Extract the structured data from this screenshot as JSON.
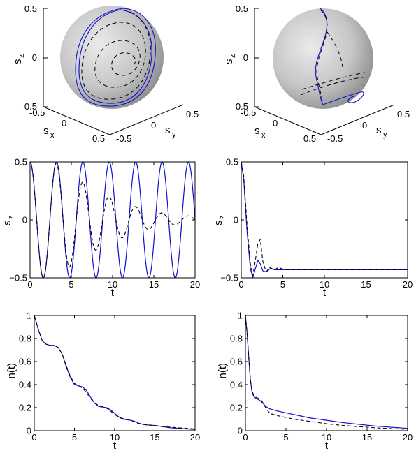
{
  "figure": {
    "colors": {
      "solid": "#1010d0",
      "dashed": "#000000",
      "sphere_light": "#e4e4e4",
      "sphere_dark": "#8c8c8c",
      "axis": "#000000"
    }
  },
  "chart_data": [
    {
      "type": "line",
      "panel": "3d-sphere-left",
      "zlabel": "s",
      "zlabel_sub": "z",
      "xlabel": "s",
      "xlabel_sub": "x",
      "ylabel": "s",
      "ylabel_sub": "y",
      "z_ticks": [
        "0.5",
        "0",
        "-0.5"
      ],
      "x_ticks": [
        "-0.5",
        "0",
        "0.5"
      ],
      "y_ticks": [
        "0.5",
        "0",
        "-0.5"
      ],
      "series": [
        {
          "style": "solid",
          "description_points": "closed loop trajectory on sphere"
        },
        {
          "style": "dashed",
          "description_points": "spiral trajectory on sphere"
        }
      ]
    },
    {
      "type": "line",
      "panel": "3d-sphere-right",
      "zlabel": "s",
      "zlabel_sub": "z",
      "xlabel": "s",
      "xlabel_sub": "x",
      "ylabel": "s",
      "ylabel_sub": "y",
      "z_ticks": [
        "0.5",
        "0",
        "-0.5"
      ],
      "x_ticks": [
        "-0.5",
        "0",
        "0.5"
      ],
      "y_ticks": [
        "0.5",
        "0",
        "-0.5"
      ],
      "series": [
        {
          "style": "solid"
        },
        {
          "style": "dashed"
        }
      ]
    },
    {
      "type": "line",
      "panel": "sz-left",
      "xlabel": "t",
      "ylabel": "s",
      "ylabel_sub": "z",
      "xlim": [
        0,
        20
      ],
      "ylim": [
        -0.5,
        0.5
      ],
      "x_ticks": [
        0,
        5,
        10,
        15,
        20
      ],
      "y_ticks": [
        -0.5,
        0,
        0.5
      ],
      "y_tick_labels": [
        "−0.5",
        "0",
        "0.5"
      ],
      "series": [
        {
          "style": "solid",
          "model": "cos",
          "amplitude": 0.5,
          "period": 3.2
        },
        {
          "style": "dashed",
          "model": "damped-cos",
          "amplitude": 0.5,
          "period": 3.2,
          "envelope": [
            [
              0,
              0.5
            ],
            [
              3,
              0.5
            ],
            [
              6,
              0.34
            ],
            [
              9,
              0.22
            ],
            [
              12,
              0.13
            ],
            [
              15,
              0.07
            ],
            [
              18,
              0.04
            ],
            [
              20,
              0.03
            ]
          ]
        }
      ]
    },
    {
      "type": "line",
      "panel": "sz-right",
      "xlabel": "t",
      "ylabel": "s",
      "ylabel_sub": "z",
      "xlim": [
        0,
        20
      ],
      "ylim": [
        -0.5,
        0.5
      ],
      "x_ticks": [
        0,
        5,
        10,
        15,
        20
      ],
      "y_ticks": [
        -0.5,
        0,
        0.5
      ],
      "y_tick_labels": [
        "−0.5",
        "0",
        "0.5"
      ],
      "series": [
        {
          "style": "solid",
          "points": [
            [
              0,
              0.5
            ],
            [
              0.3,
              0.35
            ],
            [
              0.7,
              -0.1
            ],
            [
              1.1,
              -0.42
            ],
            [
              1.4,
              -0.5
            ],
            [
              1.7,
              -0.42
            ],
            [
              2.0,
              -0.35
            ],
            [
              2.3,
              -0.38
            ],
            [
              2.6,
              -0.44
            ],
            [
              3.0,
              -0.45
            ],
            [
              3.5,
              -0.42
            ],
            [
              4.0,
              -0.43
            ],
            [
              5,
              -0.43
            ],
            [
              10,
              -0.43
            ],
            [
              15,
              -0.43
            ],
            [
              20,
              -0.43
            ]
          ]
        },
        {
          "style": "dashed",
          "points": [
            [
              0,
              0.5
            ],
            [
              0.3,
              0.38
            ],
            [
              0.7,
              -0.05
            ],
            [
              1.1,
              -0.38
            ],
            [
              1.4,
              -0.48
            ],
            [
              1.7,
              -0.35
            ],
            [
              2.0,
              -0.2
            ],
            [
              2.3,
              -0.17
            ],
            [
              2.6,
              -0.36
            ],
            [
              3.0,
              -0.45
            ],
            [
              3.4,
              -0.41
            ],
            [
              4.0,
              -0.43
            ],
            [
              4.5,
              -0.41
            ],
            [
              5.2,
              -0.43
            ],
            [
              10,
              -0.43
            ],
            [
              15,
              -0.43
            ],
            [
              20,
              -0.43
            ]
          ]
        }
      ]
    },
    {
      "type": "line",
      "panel": "n-left",
      "xlabel": "t",
      "ylabel": "n(t)",
      "xlim": [
        0,
        20
      ],
      "ylim": [
        0,
        1
      ],
      "x_ticks": [
        0,
        5,
        10,
        15,
        20
      ],
      "y_ticks": [
        0,
        0.2,
        0.4,
        0.6,
        0.8,
        1
      ],
      "y_tick_labels": [
        "0",
        "0.2",
        "0.4",
        "0.6",
        "0.8",
        "1"
      ],
      "series": [
        {
          "style": "solid",
          "points": [
            [
              0,
              1
            ],
            [
              0.5,
              0.88
            ],
            [
              1,
              0.78
            ],
            [
              1.5,
              0.75
            ],
            [
              2,
              0.74
            ],
            [
              2.5,
              0.74
            ],
            [
              3,
              0.72
            ],
            [
              3.5,
              0.66
            ],
            [
              4,
              0.55
            ],
            [
              4.5,
              0.46
            ],
            [
              5,
              0.4
            ],
            [
              5.5,
              0.39
            ],
            [
              6,
              0.38
            ],
            [
              6.5,
              0.35
            ],
            [
              7,
              0.29
            ],
            [
              7.5,
              0.24
            ],
            [
              8,
              0.21
            ],
            [
              8.5,
              0.205
            ],
            [
              9,
              0.2
            ],
            [
              9.5,
              0.18
            ],
            [
              10,
              0.15
            ],
            [
              10.5,
              0.12
            ],
            [
              11,
              0.1
            ],
            [
              11.5,
              0.095
            ],
            [
              12,
              0.09
            ],
            [
              12.5,
              0.08
            ],
            [
              13,
              0.065
            ],
            [
              13.5,
              0.055
            ],
            [
              14,
              0.05
            ],
            [
              15,
              0.045
            ],
            [
              16,
              0.035
            ],
            [
              17,
              0.025
            ],
            [
              18,
              0.02
            ],
            [
              19,
              0.015
            ],
            [
              20,
              0.01
            ]
          ]
        },
        {
          "style": "dashed",
          "points": [
            [
              0,
              1
            ],
            [
              0.5,
              0.88
            ],
            [
              1,
              0.78
            ],
            [
              1.5,
              0.75
            ],
            [
              2,
              0.74
            ],
            [
              2.5,
              0.74
            ],
            [
              3,
              0.72
            ],
            [
              3.5,
              0.66
            ],
            [
              4,
              0.56
            ],
            [
              4.5,
              0.47
            ],
            [
              5,
              0.41
            ],
            [
              5.5,
              0.39
            ],
            [
              6,
              0.37
            ],
            [
              6.5,
              0.33
            ],
            [
              7,
              0.28
            ],
            [
              7.5,
              0.24
            ],
            [
              8,
              0.22
            ],
            [
              8.5,
              0.21
            ],
            [
              9,
              0.195
            ],
            [
              9.5,
              0.17
            ],
            [
              10,
              0.14
            ],
            [
              10.5,
              0.12
            ],
            [
              11,
              0.105
            ],
            [
              11.5,
              0.1
            ],
            [
              12,
              0.09
            ],
            [
              12.5,
              0.075
            ],
            [
              13,
              0.06
            ],
            [
              13.5,
              0.055
            ],
            [
              14,
              0.05
            ],
            [
              15,
              0.045
            ],
            [
              16,
              0.035
            ],
            [
              17,
              0.03
            ],
            [
              18,
              0.025
            ],
            [
              19,
              0.02
            ],
            [
              20,
              0.015
            ]
          ]
        }
      ]
    },
    {
      "type": "line",
      "panel": "n-right",
      "xlabel": "t",
      "ylabel": "n(t)",
      "xlim": [
        0,
        20
      ],
      "ylim": [
        0,
        1
      ],
      "x_ticks": [
        0,
        5,
        10,
        15,
        20
      ],
      "y_ticks": [
        0,
        0.2,
        0.4,
        0.6,
        0.8,
        1
      ],
      "y_tick_labels": [
        "0",
        "0.2",
        "0.4",
        "0.6",
        "0.8",
        "1"
      ],
      "series": [
        {
          "style": "solid",
          "points": [
            [
              0,
              1
            ],
            [
              0.2,
              0.85
            ],
            [
              0.4,
              0.65
            ],
            [
              0.6,
              0.45
            ],
            [
              0.8,
              0.34
            ],
            [
              1,
              0.3
            ],
            [
              1.3,
              0.28
            ],
            [
              1.6,
              0.27
            ],
            [
              2,
              0.25
            ],
            [
              2.5,
              0.21
            ],
            [
              3,
              0.19
            ],
            [
              4,
              0.17
            ],
            [
              5,
              0.155
            ],
            [
              6,
              0.14
            ],
            [
              7,
              0.125
            ],
            [
              8,
              0.11
            ],
            [
              10,
              0.09
            ],
            [
              12,
              0.07
            ],
            [
              14,
              0.055
            ],
            [
              16,
              0.04
            ],
            [
              18,
              0.03
            ],
            [
              20,
              0.02
            ]
          ]
        },
        {
          "style": "dashed",
          "points": [
            [
              0,
              1
            ],
            [
              0.2,
              0.85
            ],
            [
              0.4,
              0.64
            ],
            [
              0.6,
              0.45
            ],
            [
              0.8,
              0.35
            ],
            [
              1,
              0.31
            ],
            [
              1.3,
              0.29
            ],
            [
              1.6,
              0.28
            ],
            [
              2,
              0.26
            ],
            [
              2.5,
              0.2
            ],
            [
              3,
              0.15
            ],
            [
              4,
              0.13
            ],
            [
              5,
              0.115
            ],
            [
              6,
              0.1
            ],
            [
              8,
              0.08
            ],
            [
              10,
              0.06
            ],
            [
              12,
              0.045
            ],
            [
              14,
              0.035
            ],
            [
              16,
              0.025
            ],
            [
              18,
              0.018
            ],
            [
              20,
              0.012
            ]
          ]
        }
      ]
    }
  ]
}
